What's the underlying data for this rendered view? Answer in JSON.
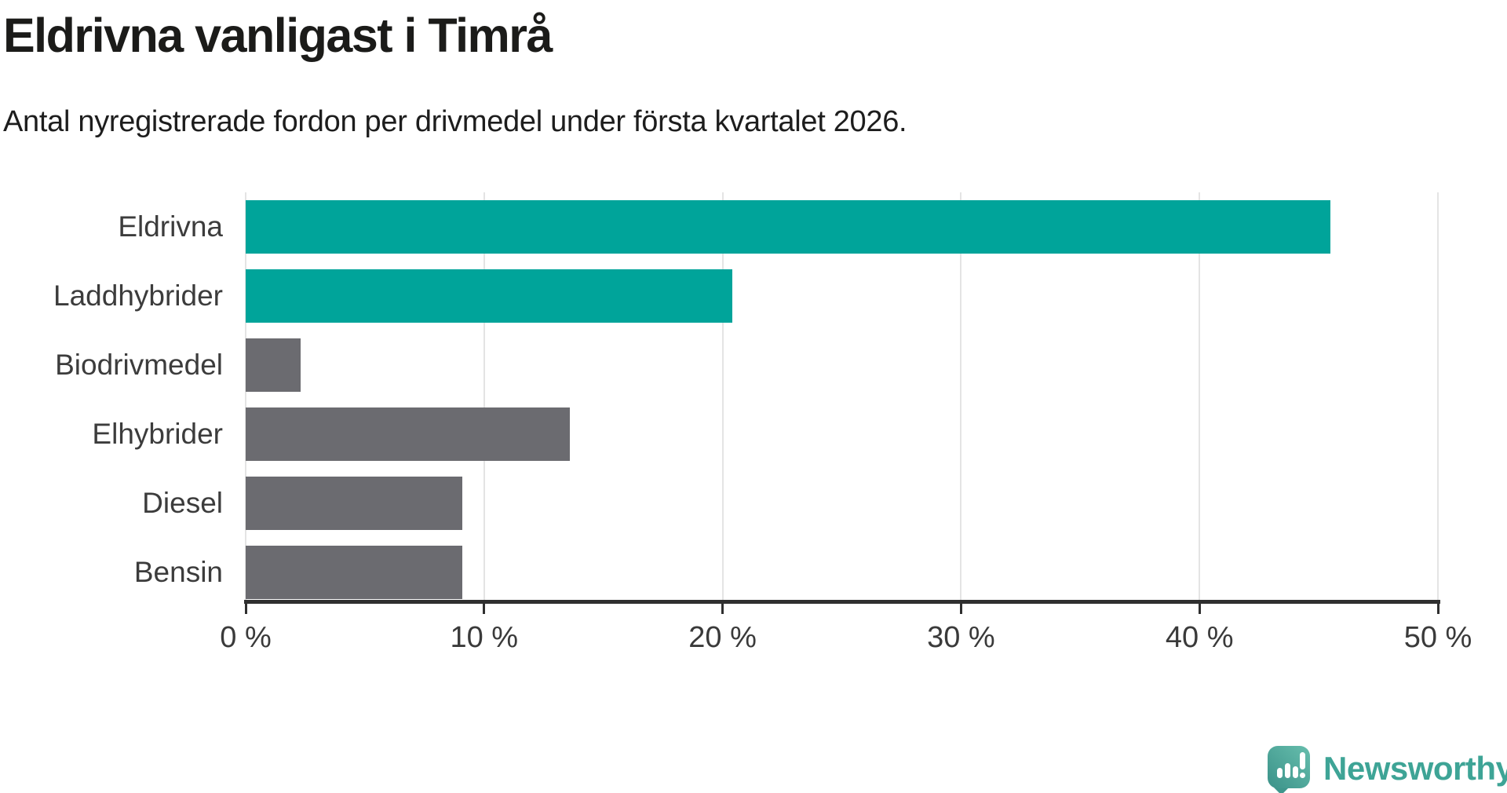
{
  "header": {
    "title": "Eldrivna vanligast i Timrå",
    "subtitle": "Antal nyregistrerade fordon per drivmedel under första kvartalet 2026."
  },
  "chart_data": {
    "type": "bar",
    "orientation": "horizontal",
    "title": "Eldrivna vanligast i Timrå",
    "subtitle": "Antal nyregistrerade fordon per drivmedel under första kvartalet 2026.",
    "categories": [
      "Eldrivna",
      "Laddhybrider",
      "Biodrivmedel",
      "Elhybrider",
      "Diesel",
      "Bensin"
    ],
    "values": [
      45.5,
      20.4,
      2.3,
      13.6,
      9.1,
      9.1
    ],
    "unit": "%",
    "xlabel": "",
    "ylabel": "",
    "xlim": [
      0,
      50
    ],
    "x_ticks": [
      0,
      10,
      20,
      30,
      40,
      50
    ],
    "x_tick_labels": [
      "0 %",
      "10 %",
      "20 %",
      "30 %",
      "40 %",
      "50 %"
    ],
    "grid": true,
    "legend": false,
    "bar_colors": [
      "#00a49a",
      "#00a49a",
      "#6b6b70",
      "#6b6b70",
      "#6b6b70",
      "#6b6b70"
    ],
    "highlight_color": "#00a49a",
    "default_color": "#6b6b70",
    "gridline_color": "#e4e4e4",
    "axis_color": "#2f2f2f"
  },
  "footer": {
    "brand": "Newsworthy",
    "brand_color": "#3ea496",
    "icon": "newsworthy-logo-icon"
  }
}
